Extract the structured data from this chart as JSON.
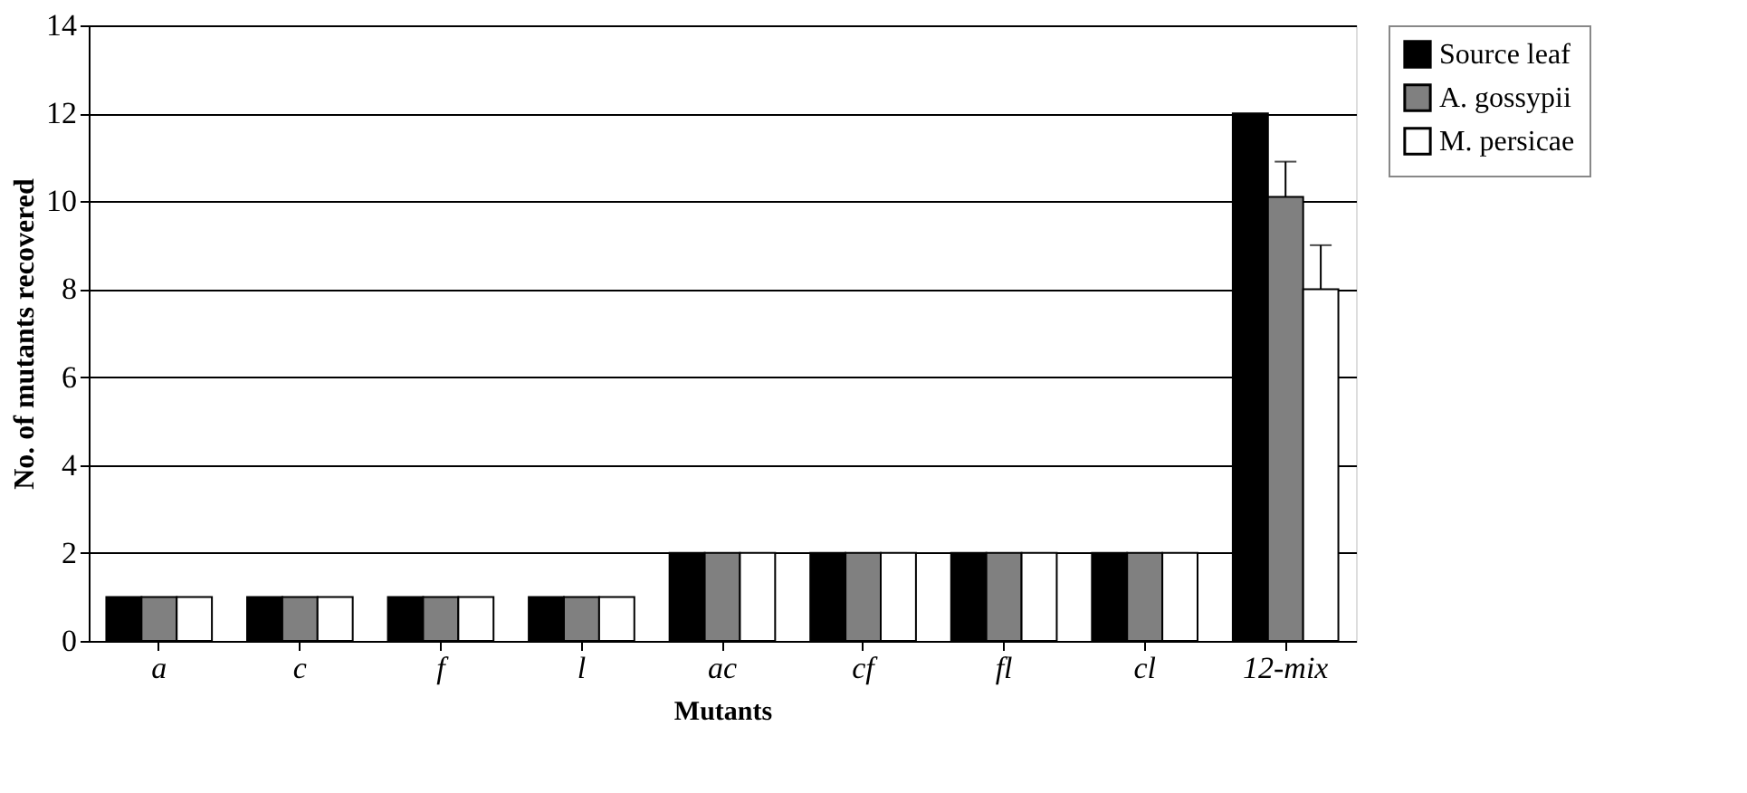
{
  "chart_data": {
    "type": "bar",
    "xlabel": "Mutants",
    "ylabel": "No. of mutants recovered",
    "categories": [
      "a",
      "c",
      "f",
      "l",
      "ac",
      "cf",
      "fl",
      "cl",
      "12-mix"
    ],
    "series": [
      {
        "name": "Source leaf",
        "color": "#000000",
        "values": [
          1,
          1,
          1,
          1,
          2,
          2,
          2,
          2,
          12
        ]
      },
      {
        "name": "A. gossypii",
        "color": "#808080",
        "values": [
          1,
          1,
          1,
          1,
          2,
          2,
          2,
          2,
          10.1
        ],
        "errors": [
          null,
          null,
          null,
          null,
          null,
          null,
          null,
          null,
          [
            10.1,
            10.9
          ]
        ]
      },
      {
        "name": "M. persicae",
        "color": "#ffffff",
        "values": [
          1,
          1,
          1,
          1,
          2,
          2,
          2,
          2,
          8
        ],
        "errors": [
          null,
          null,
          null,
          null,
          null,
          null,
          null,
          null,
          [
            8,
            9
          ]
        ]
      }
    ],
    "ylim": [
      0,
      14
    ],
    "yticks": [
      0,
      2,
      4,
      6,
      8,
      10,
      12,
      14
    ],
    "grid": "y",
    "legend": "right"
  }
}
